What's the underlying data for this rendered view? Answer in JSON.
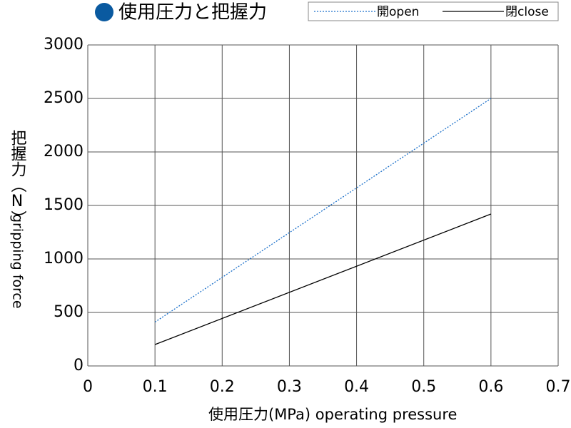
{
  "chart_data": {
    "type": "line",
    "title": "使用圧力と把握力",
    "x_label": "使用圧力(MPa)  operating pressure",
    "y_label": "把握力（N）",
    "y_label_en": "gripping force",
    "xlim": [
      0,
      0.7
    ],
    "xticks": [
      0,
      0.1,
      0.2,
      0.3,
      0.4,
      0.5,
      0.6,
      0.7
    ],
    "ylim": [
      0,
      3000
    ],
    "yticks": [
      0,
      500,
      1000,
      1500,
      2000,
      2500,
      3000
    ],
    "grid": true,
    "legend": "top-right",
    "series": [
      {
        "name": "開open",
        "color": "#1a6fc9",
        "dash": "dotted",
        "x": [
          0.1,
          0.6
        ],
        "values": [
          410,
          2500
        ]
      },
      {
        "name": "閉close",
        "color": "#000000",
        "dash": "solid",
        "x": [
          0.1,
          0.6
        ],
        "values": [
          200,
          1420
        ]
      }
    ]
  }
}
